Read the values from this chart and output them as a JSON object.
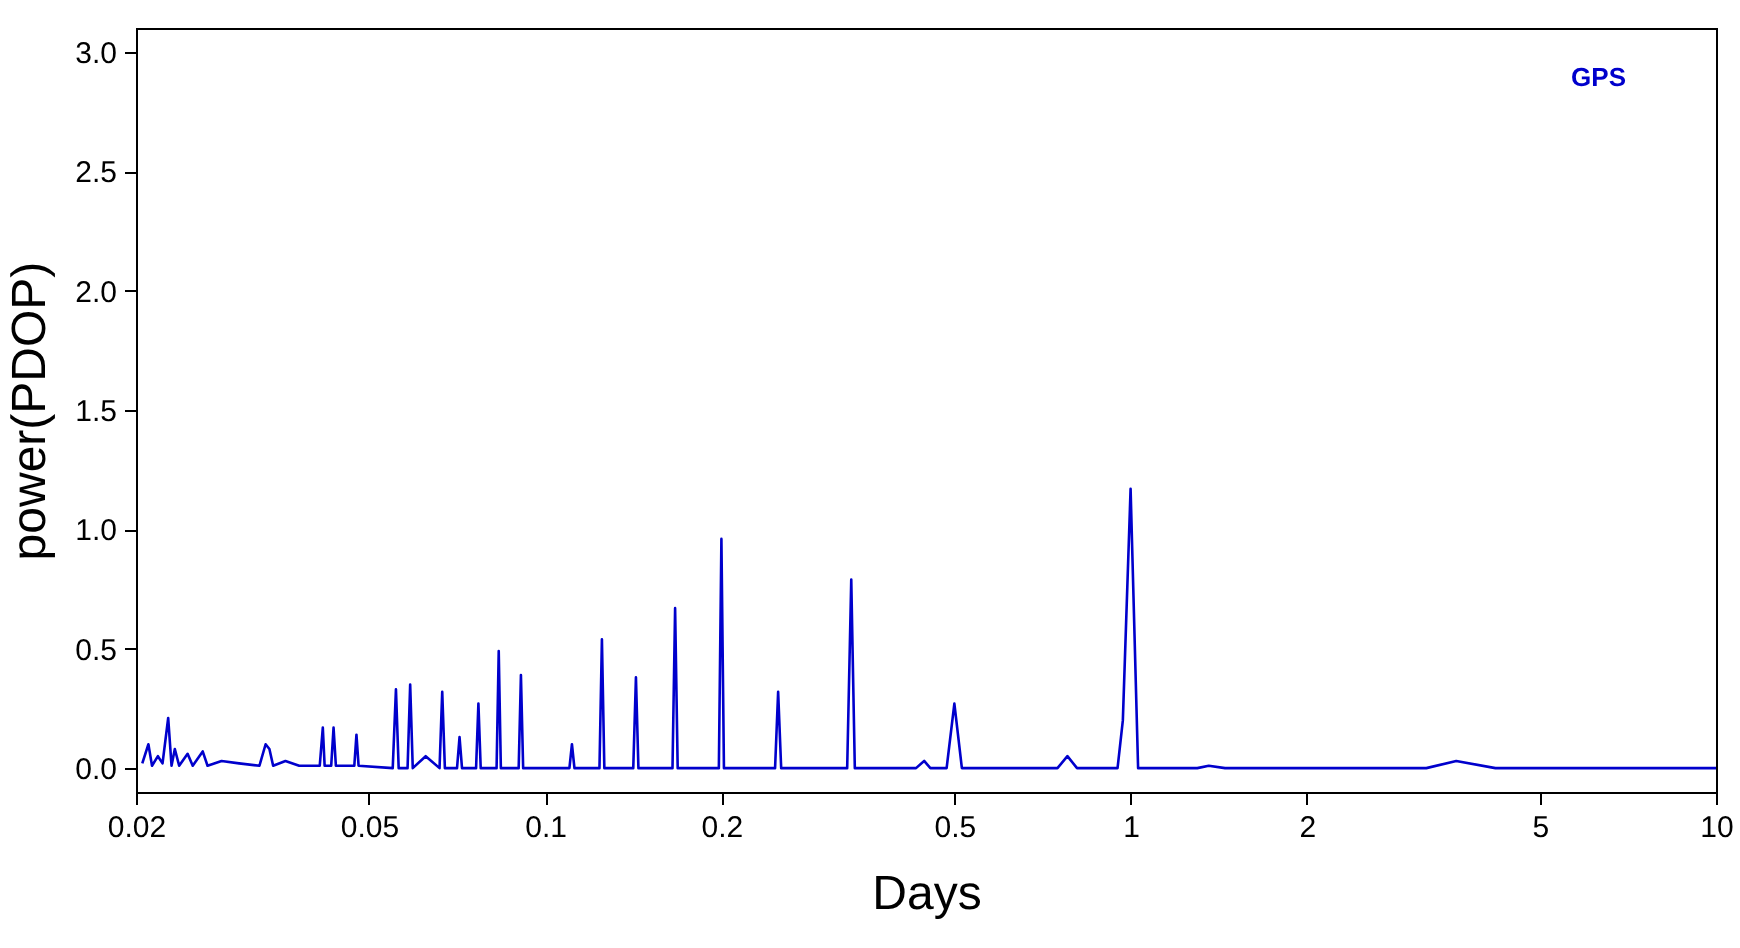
{
  "chart_data": {
    "type": "line",
    "xlabel": "Days",
    "ylabel": "power(PDOP)",
    "log": "x",
    "xlim": [
      0.02,
      10
    ],
    "xticks": [
      0.02,
      0.05,
      0.1,
      0.2,
      0.5,
      1,
      2,
      5,
      10
    ],
    "ylim": [
      -0.1,
      3.1
    ],
    "yticks": [
      {
        "value": 0,
        "label": "0.0"
      },
      0.5,
      {
        "value": 1,
        "label": "1.0"
      },
      1.5,
      {
        "value": 2,
        "label": "2.0"
      },
      2.5,
      {
        "value": 3,
        "label": "3.0"
      }
    ],
    "grid": false,
    "legend": "top right",
    "marker": "none",
    "line_style": "solid",
    "series": [
      {
        "name": "GPS",
        "color": "#0000cc",
        "x": [
          0.0205,
          0.021,
          0.0213,
          0.0218,
          0.0222,
          0.0227,
          0.023,
          0.0233,
          0.0237,
          0.0245,
          0.025,
          0.026,
          0.0265,
          0.028,
          0.03,
          0.0325,
          0.0333,
          0.0338,
          0.0343,
          0.036,
          0.038,
          0.0412,
          0.0417,
          0.042,
          0.0431,
          0.0435,
          0.0439,
          0.0472,
          0.0476,
          0.048,
          0.0549,
          0.0556,
          0.0562,
          0.0582,
          0.0588,
          0.0594,
          0.0625,
          0.066,
          0.0667,
          0.0674,
          0.0707,
          0.0714,
          0.0721,
          0.0762,
          0.0769,
          0.0776,
          0.0826,
          0.0833,
          0.084,
          0.0901,
          0.0909,
          0.0917,
          0.11,
          0.1111,
          0.1122,
          0.1238,
          0.125,
          0.1262,
          0.1414,
          0.1429,
          0.1443,
          0.165,
          0.1667,
          0.1684,
          0.198,
          0.2,
          0.202,
          0.247,
          0.25,
          0.253,
          0.328,
          0.3333,
          0.338,
          0.43,
          0.444,
          0.455,
          0.485,
          0.5,
          0.515,
          0.75,
          0.78,
          0.81,
          0.95,
          0.97,
          1.0,
          1.03,
          1.3,
          1.36,
          1.45,
          2.2,
          3.2,
          3.6,
          4.2,
          10
        ],
        "values": [
          0.02,
          0.1,
          0.01,
          0.05,
          0.02,
          0.21,
          0.01,
          0.08,
          0.01,
          0.06,
          0.01,
          0.07,
          0.01,
          0.03,
          0.02,
          0.01,
          0.1,
          0.08,
          0.01,
          0.03,
          0.01,
          0.01,
          0.17,
          0.01,
          0.01,
          0.17,
          0.01,
          0.01,
          0.14,
          0.01,
          0,
          0.33,
          0,
          0,
          0.35,
          0,
          0.05,
          0,
          0.32,
          0,
          0,
          0.13,
          0,
          0,
          0.27,
          0,
          0,
          0.49,
          0,
          0,
          0.39,
          0,
          0,
          0.1,
          0,
          0,
          0.54,
          0,
          0,
          0.38,
          0,
          0,
          0.67,
          0,
          0,
          0.96,
          0,
          0,
          0.32,
          0,
          0,
          0.79,
          0,
          0,
          0.03,
          0,
          0,
          0.27,
          0,
          0,
          0.05,
          0,
          0,
          0.2,
          1.17,
          0,
          0,
          0.01,
          0,
          0,
          0,
          0.03,
          0,
          0
        ]
      }
    ]
  }
}
